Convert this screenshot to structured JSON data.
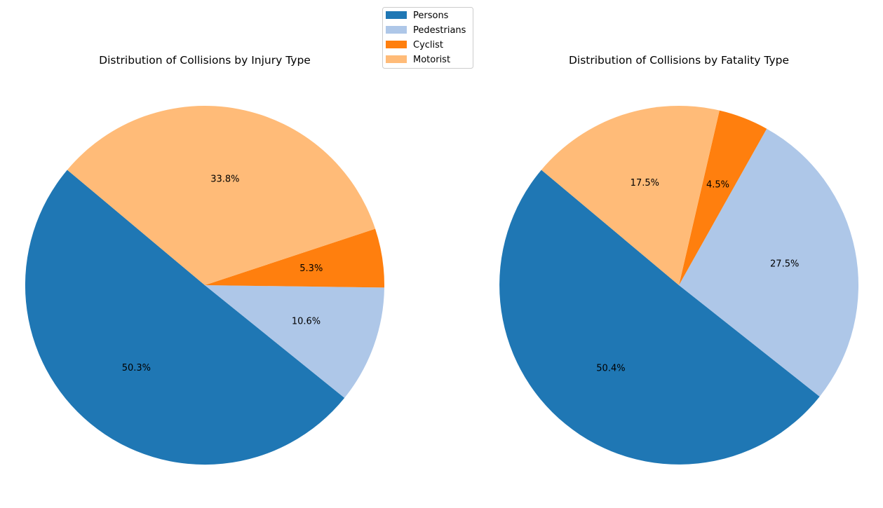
{
  "legend": {
    "entries": [
      {
        "label": "Persons",
        "color": "#1f77b4"
      },
      {
        "label": "Pedestrians",
        "color": "#aec7e8"
      },
      {
        "label": "Cyclist",
        "color": "#ff7f0e"
      },
      {
        "label": "Motorist",
        "color": "#ffbb78"
      }
    ],
    "placement": "top-center"
  },
  "chart_data": [
    {
      "type": "pie",
      "title": "Distribution of Collisions by Injury Type",
      "categories": [
        "Persons",
        "Pedestrians",
        "Cyclist",
        "Motorist"
      ],
      "values": [
        50.3,
        10.6,
        5.3,
        33.8
      ],
      "labels": [
        "50.3%",
        "10.6%",
        "5.3%",
        "33.8%"
      ],
      "colors": [
        "#1f77b4",
        "#aec7e8",
        "#ff7f0e",
        "#ffbb78"
      ],
      "start_angle_deg": 140
    },
    {
      "type": "pie",
      "title": "Distribution of Collisions by Fatality Type",
      "categories": [
        "Persons",
        "Pedestrians",
        "Cyclist",
        "Motorist"
      ],
      "values": [
        50.4,
        27.5,
        4.5,
        17.5
      ],
      "labels": [
        "50.4%",
        "27.5%",
        "4.5%",
        "17.5%"
      ],
      "colors": [
        "#1f77b4",
        "#aec7e8",
        "#ff7f0e",
        "#ffbb78"
      ],
      "start_angle_deg": 140
    }
  ]
}
